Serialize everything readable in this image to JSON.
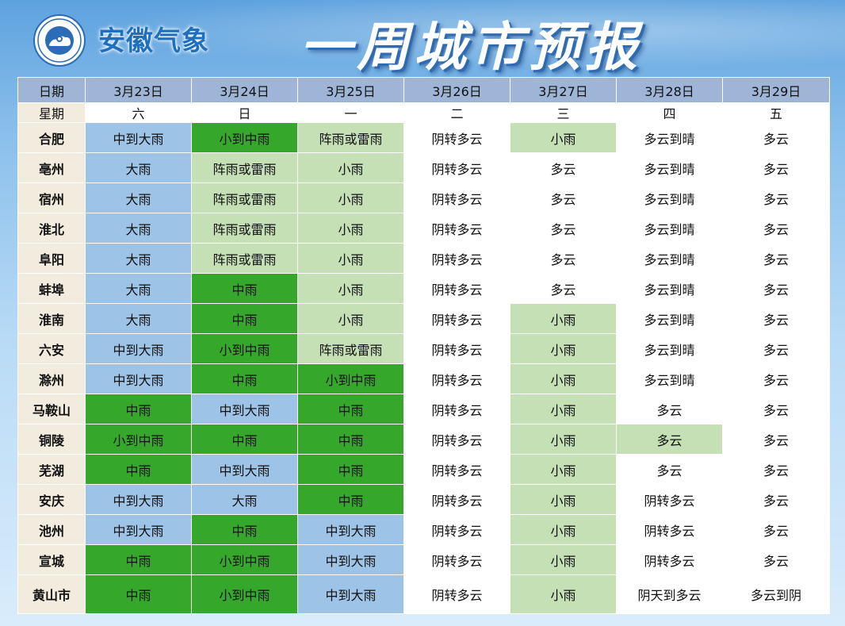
{
  "header": {
    "logo_icon": "anhui-meteorological-bureau-seal",
    "brand": "安徽气象",
    "title": "一周城市预报"
  },
  "table": {
    "date_label": "日期",
    "weekday_label": "星期",
    "dates": [
      "3月23日",
      "3月24日",
      "3月25日",
      "3月26日",
      "3月27日",
      "3月28日",
      "3月29日"
    ],
    "weekdays": [
      "六",
      "日",
      "一",
      "二",
      "三",
      "四",
      "五"
    ],
    "colors": {
      "heavy": "#9dc3e6",
      "moderate": "#35a82b",
      "light": "#c5e0b4",
      "none": "#ffffff",
      "city": "#f2ecde",
      "header": "#9fb5d8"
    },
    "rows": [
      {
        "city": "合肥",
        "cells": [
          [
            "中到大雨",
            "blue"
          ],
          [
            "小到中雨",
            "green"
          ],
          [
            "阵雨或雷雨",
            "light"
          ],
          [
            "阴转多云",
            "white"
          ],
          [
            "小雨",
            "light"
          ],
          [
            "多云到晴",
            "white"
          ],
          [
            "多云",
            "white"
          ]
        ]
      },
      {
        "city": "亳州",
        "cells": [
          [
            "大雨",
            "blue"
          ],
          [
            "阵雨或雷雨",
            "light"
          ],
          [
            "小雨",
            "light"
          ],
          [
            "阴转多云",
            "white"
          ],
          [
            "多云",
            "white"
          ],
          [
            "多云到晴",
            "white"
          ],
          [
            "多云",
            "white"
          ]
        ]
      },
      {
        "city": "宿州",
        "cells": [
          [
            "大雨",
            "blue"
          ],
          [
            "阵雨或雷雨",
            "light"
          ],
          [
            "小雨",
            "light"
          ],
          [
            "阴转多云",
            "white"
          ],
          [
            "多云",
            "white"
          ],
          [
            "多云到晴",
            "white"
          ],
          [
            "多云",
            "white"
          ]
        ]
      },
      {
        "city": "淮北",
        "cells": [
          [
            "大雨",
            "blue"
          ],
          [
            "阵雨或雷雨",
            "light"
          ],
          [
            "小雨",
            "light"
          ],
          [
            "阴转多云",
            "white"
          ],
          [
            "多云",
            "white"
          ],
          [
            "多云到晴",
            "white"
          ],
          [
            "多云",
            "white"
          ]
        ]
      },
      {
        "city": "阜阳",
        "cells": [
          [
            "大雨",
            "blue"
          ],
          [
            "阵雨或雷雨",
            "light"
          ],
          [
            "小雨",
            "light"
          ],
          [
            "阴转多云",
            "white"
          ],
          [
            "多云",
            "white"
          ],
          [
            "多云到晴",
            "white"
          ],
          [
            "多云",
            "white"
          ]
        ]
      },
      {
        "city": "蚌埠",
        "cells": [
          [
            "大雨",
            "blue"
          ],
          [
            "中雨",
            "green"
          ],
          [
            "小雨",
            "light"
          ],
          [
            "阴转多云",
            "white"
          ],
          [
            "多云",
            "white"
          ],
          [
            "多云到晴",
            "white"
          ],
          [
            "多云",
            "white"
          ]
        ]
      },
      {
        "city": "淮南",
        "cells": [
          [
            "大雨",
            "blue"
          ],
          [
            "中雨",
            "green"
          ],
          [
            "小雨",
            "light"
          ],
          [
            "阴转多云",
            "white"
          ],
          [
            "小雨",
            "light"
          ],
          [
            "多云到晴",
            "white"
          ],
          [
            "多云",
            "white"
          ]
        ]
      },
      {
        "city": "六安",
        "cells": [
          [
            "中到大雨",
            "blue"
          ],
          [
            "小到中雨",
            "green"
          ],
          [
            "阵雨或雷雨",
            "light"
          ],
          [
            "阴转多云",
            "white"
          ],
          [
            "小雨",
            "light"
          ],
          [
            "多云到晴",
            "white"
          ],
          [
            "多云",
            "white"
          ]
        ]
      },
      {
        "city": "滁州",
        "cells": [
          [
            "中到大雨",
            "blue"
          ],
          [
            "中雨",
            "green"
          ],
          [
            "小到中雨",
            "green"
          ],
          [
            "阴转多云",
            "white"
          ],
          [
            "小雨",
            "light"
          ],
          [
            "多云到晴",
            "white"
          ],
          [
            "多云",
            "white"
          ]
        ]
      },
      {
        "city": "马鞍山",
        "cells": [
          [
            "中雨",
            "green"
          ],
          [
            "中到大雨",
            "blue"
          ],
          [
            "中雨",
            "green"
          ],
          [
            "阴转多云",
            "white"
          ],
          [
            "小雨",
            "light"
          ],
          [
            "多云",
            "white"
          ],
          [
            "多云",
            "white"
          ]
        ]
      },
      {
        "city": "铜陵",
        "cells": [
          [
            "小到中雨",
            "green"
          ],
          [
            "中雨",
            "green"
          ],
          [
            "中雨",
            "green"
          ],
          [
            "阴转多云",
            "white"
          ],
          [
            "小雨",
            "light"
          ],
          [
            "多云",
            "light"
          ],
          [
            "多云",
            "white"
          ]
        ]
      },
      {
        "city": "芜湖",
        "cells": [
          [
            "中雨",
            "green"
          ],
          [
            "中到大雨",
            "blue"
          ],
          [
            "中雨",
            "green"
          ],
          [
            "阴转多云",
            "white"
          ],
          [
            "小雨",
            "light"
          ],
          [
            "多云",
            "white"
          ],
          [
            "多云",
            "white"
          ]
        ]
      },
      {
        "city": "安庆",
        "cells": [
          [
            "中到大雨",
            "blue"
          ],
          [
            "大雨",
            "blue"
          ],
          [
            "中雨",
            "green"
          ],
          [
            "阴转多云",
            "white"
          ],
          [
            "小雨",
            "light"
          ],
          [
            "阴转多云",
            "white"
          ],
          [
            "多云",
            "white"
          ]
        ]
      },
      {
        "city": "池州",
        "cells": [
          [
            "中到大雨",
            "blue"
          ],
          [
            "中雨",
            "green"
          ],
          [
            "中到大雨",
            "blue"
          ],
          [
            "阴转多云",
            "white"
          ],
          [
            "小雨",
            "light"
          ],
          [
            "阴转多云",
            "white"
          ],
          [
            "多云",
            "white"
          ]
        ]
      },
      {
        "city": "宣城",
        "cells": [
          [
            "中雨",
            "green"
          ],
          [
            "小到中雨",
            "green"
          ],
          [
            "中到大雨",
            "blue"
          ],
          [
            "阴转多云",
            "white"
          ],
          [
            "小雨",
            "light"
          ],
          [
            "阴转多云",
            "white"
          ],
          [
            "多云",
            "white"
          ]
        ]
      },
      {
        "city": "黄山市",
        "cells": [
          [
            "中雨",
            "green"
          ],
          [
            "小到中雨",
            "green"
          ],
          [
            "中到大雨",
            "blue"
          ],
          [
            "阴转多云",
            "white"
          ],
          [
            "小雨",
            "light"
          ],
          [
            "阴天到多云",
            "white"
          ],
          [
            "多云到阴",
            "white"
          ]
        ]
      }
    ]
  }
}
